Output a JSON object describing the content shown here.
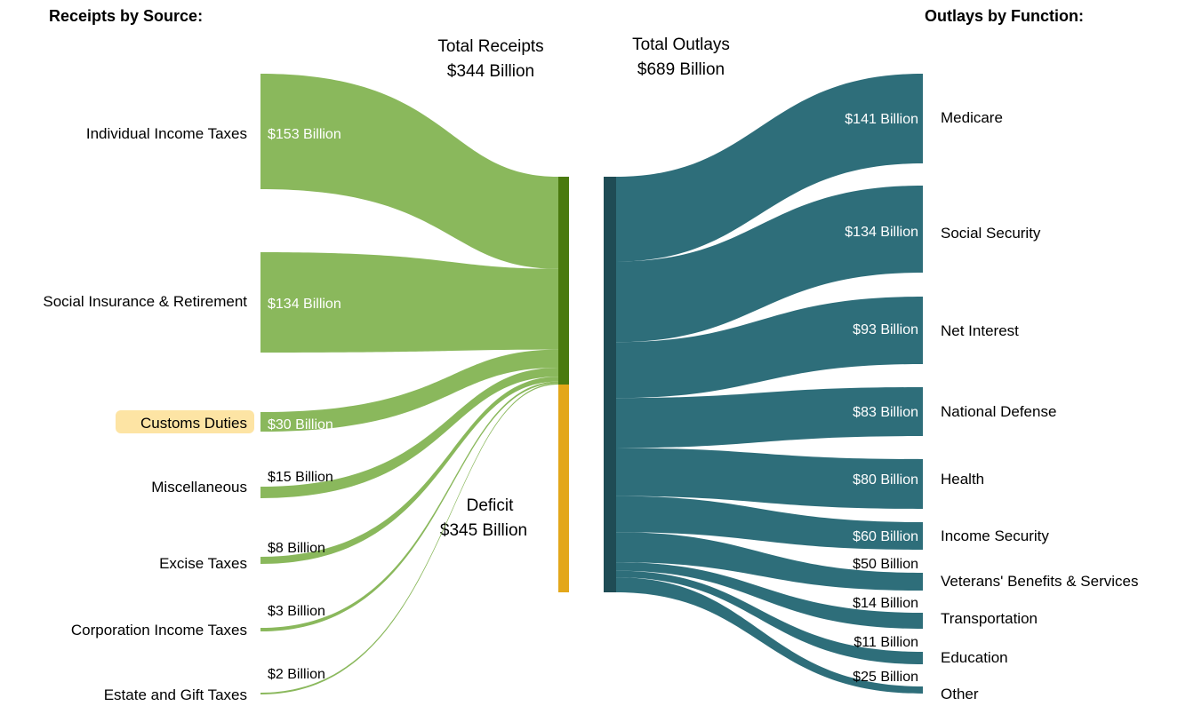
{
  "headers": {
    "receipts": "Receipts by Source:",
    "outlays": "Outlays by Function:"
  },
  "totals": {
    "receipts_label": "Total Receipts",
    "receipts_value": "$344 Billion",
    "outlays_label": "Total Outlays",
    "outlays_value": "$689 Billion",
    "deficit_label": "Deficit",
    "deficit_value": "$345 Billion"
  },
  "receipts": [
    {
      "label": "Individual Income Taxes",
      "value": "$153 Billion",
      "amount": 153
    },
    {
      "label": "Social Insurance & Retirement",
      "value": "$134 Billion",
      "amount": 134
    },
    {
      "label": "Customs Duties",
      "value": "$30 Billion",
      "amount": 30,
      "highlighted": true
    },
    {
      "label": "Miscellaneous",
      "value": "$15 Billion",
      "amount": 15
    },
    {
      "label": "Excise Taxes",
      "value": "$8 Billion",
      "amount": 8
    },
    {
      "label": "Corporation Income Taxes",
      "value": "$3 Billion",
      "amount": 3
    },
    {
      "label": "Estate and Gift Taxes",
      "value": "$2 Billion",
      "amount": 2
    }
  ],
  "outlays": [
    {
      "label": "Medicare",
      "value": "$141 Billion",
      "amount": 141
    },
    {
      "label": "Social Security",
      "value": "$134 Billion",
      "amount": 134
    },
    {
      "label": "Net Interest",
      "value": "$93 Billion",
      "amount": 93
    },
    {
      "label": "National Defense",
      "value": "$83 Billion",
      "amount": 83
    },
    {
      "label": "Health",
      "value": "$80 Billion",
      "amount": 80
    },
    {
      "label": "Income Security",
      "value": "$60 Billion",
      "amount": 60
    },
    {
      "label": "Veterans' Benefits & Services",
      "value": "$50 Billion",
      "amount": 50
    },
    {
      "label": "Transportation",
      "value": "$14 Billion",
      "amount": 14
    },
    {
      "label": "Education",
      "value": "$11 Billion",
      "amount": 11
    },
    {
      "label": "Other",
      "value": "$25 Billion",
      "amount": 25
    }
  ],
  "colors": {
    "receipts_flow": "#8ab85c",
    "receipts_bar": "#4a7a0e",
    "deficit_bar": "#e3a71a",
    "outlays_flow": "#2e6e7a",
    "outlays_bar": "#1f4c55",
    "highlight": "#fde4a4"
  }
}
